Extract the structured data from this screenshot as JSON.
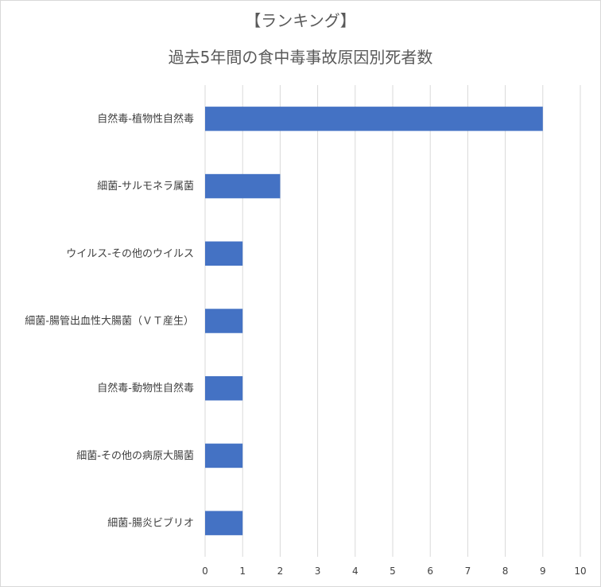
{
  "chart_data": {
    "type": "bar",
    "orientation": "horizontal",
    "title_line1": "【ランキング】",
    "title_line2": "過去5年間の食中毒事故原因別死者数",
    "categories": [
      "自然毒-植物性自然毒",
      "細菌-サルモネラ属菌",
      "ウイルス-その他のウイルス",
      "細菌-腸管出血性大腸菌（ＶＴ産生）",
      "自然毒-動物性自然毒",
      "細菌-その他の病原大腸菌",
      "細菌-腸炎ビブリオ"
    ],
    "values": [
      9,
      2,
      1,
      1,
      1,
      1,
      1
    ],
    "xlim": [
      0,
      10
    ],
    "xticks": [
      "0",
      "1",
      "2",
      "3",
      "4",
      "5",
      "6",
      "7",
      "8",
      "9",
      "10"
    ],
    "grid": "vertical",
    "bar_color": "#4472c4",
    "grid_color": "#d9d9d9"
  }
}
